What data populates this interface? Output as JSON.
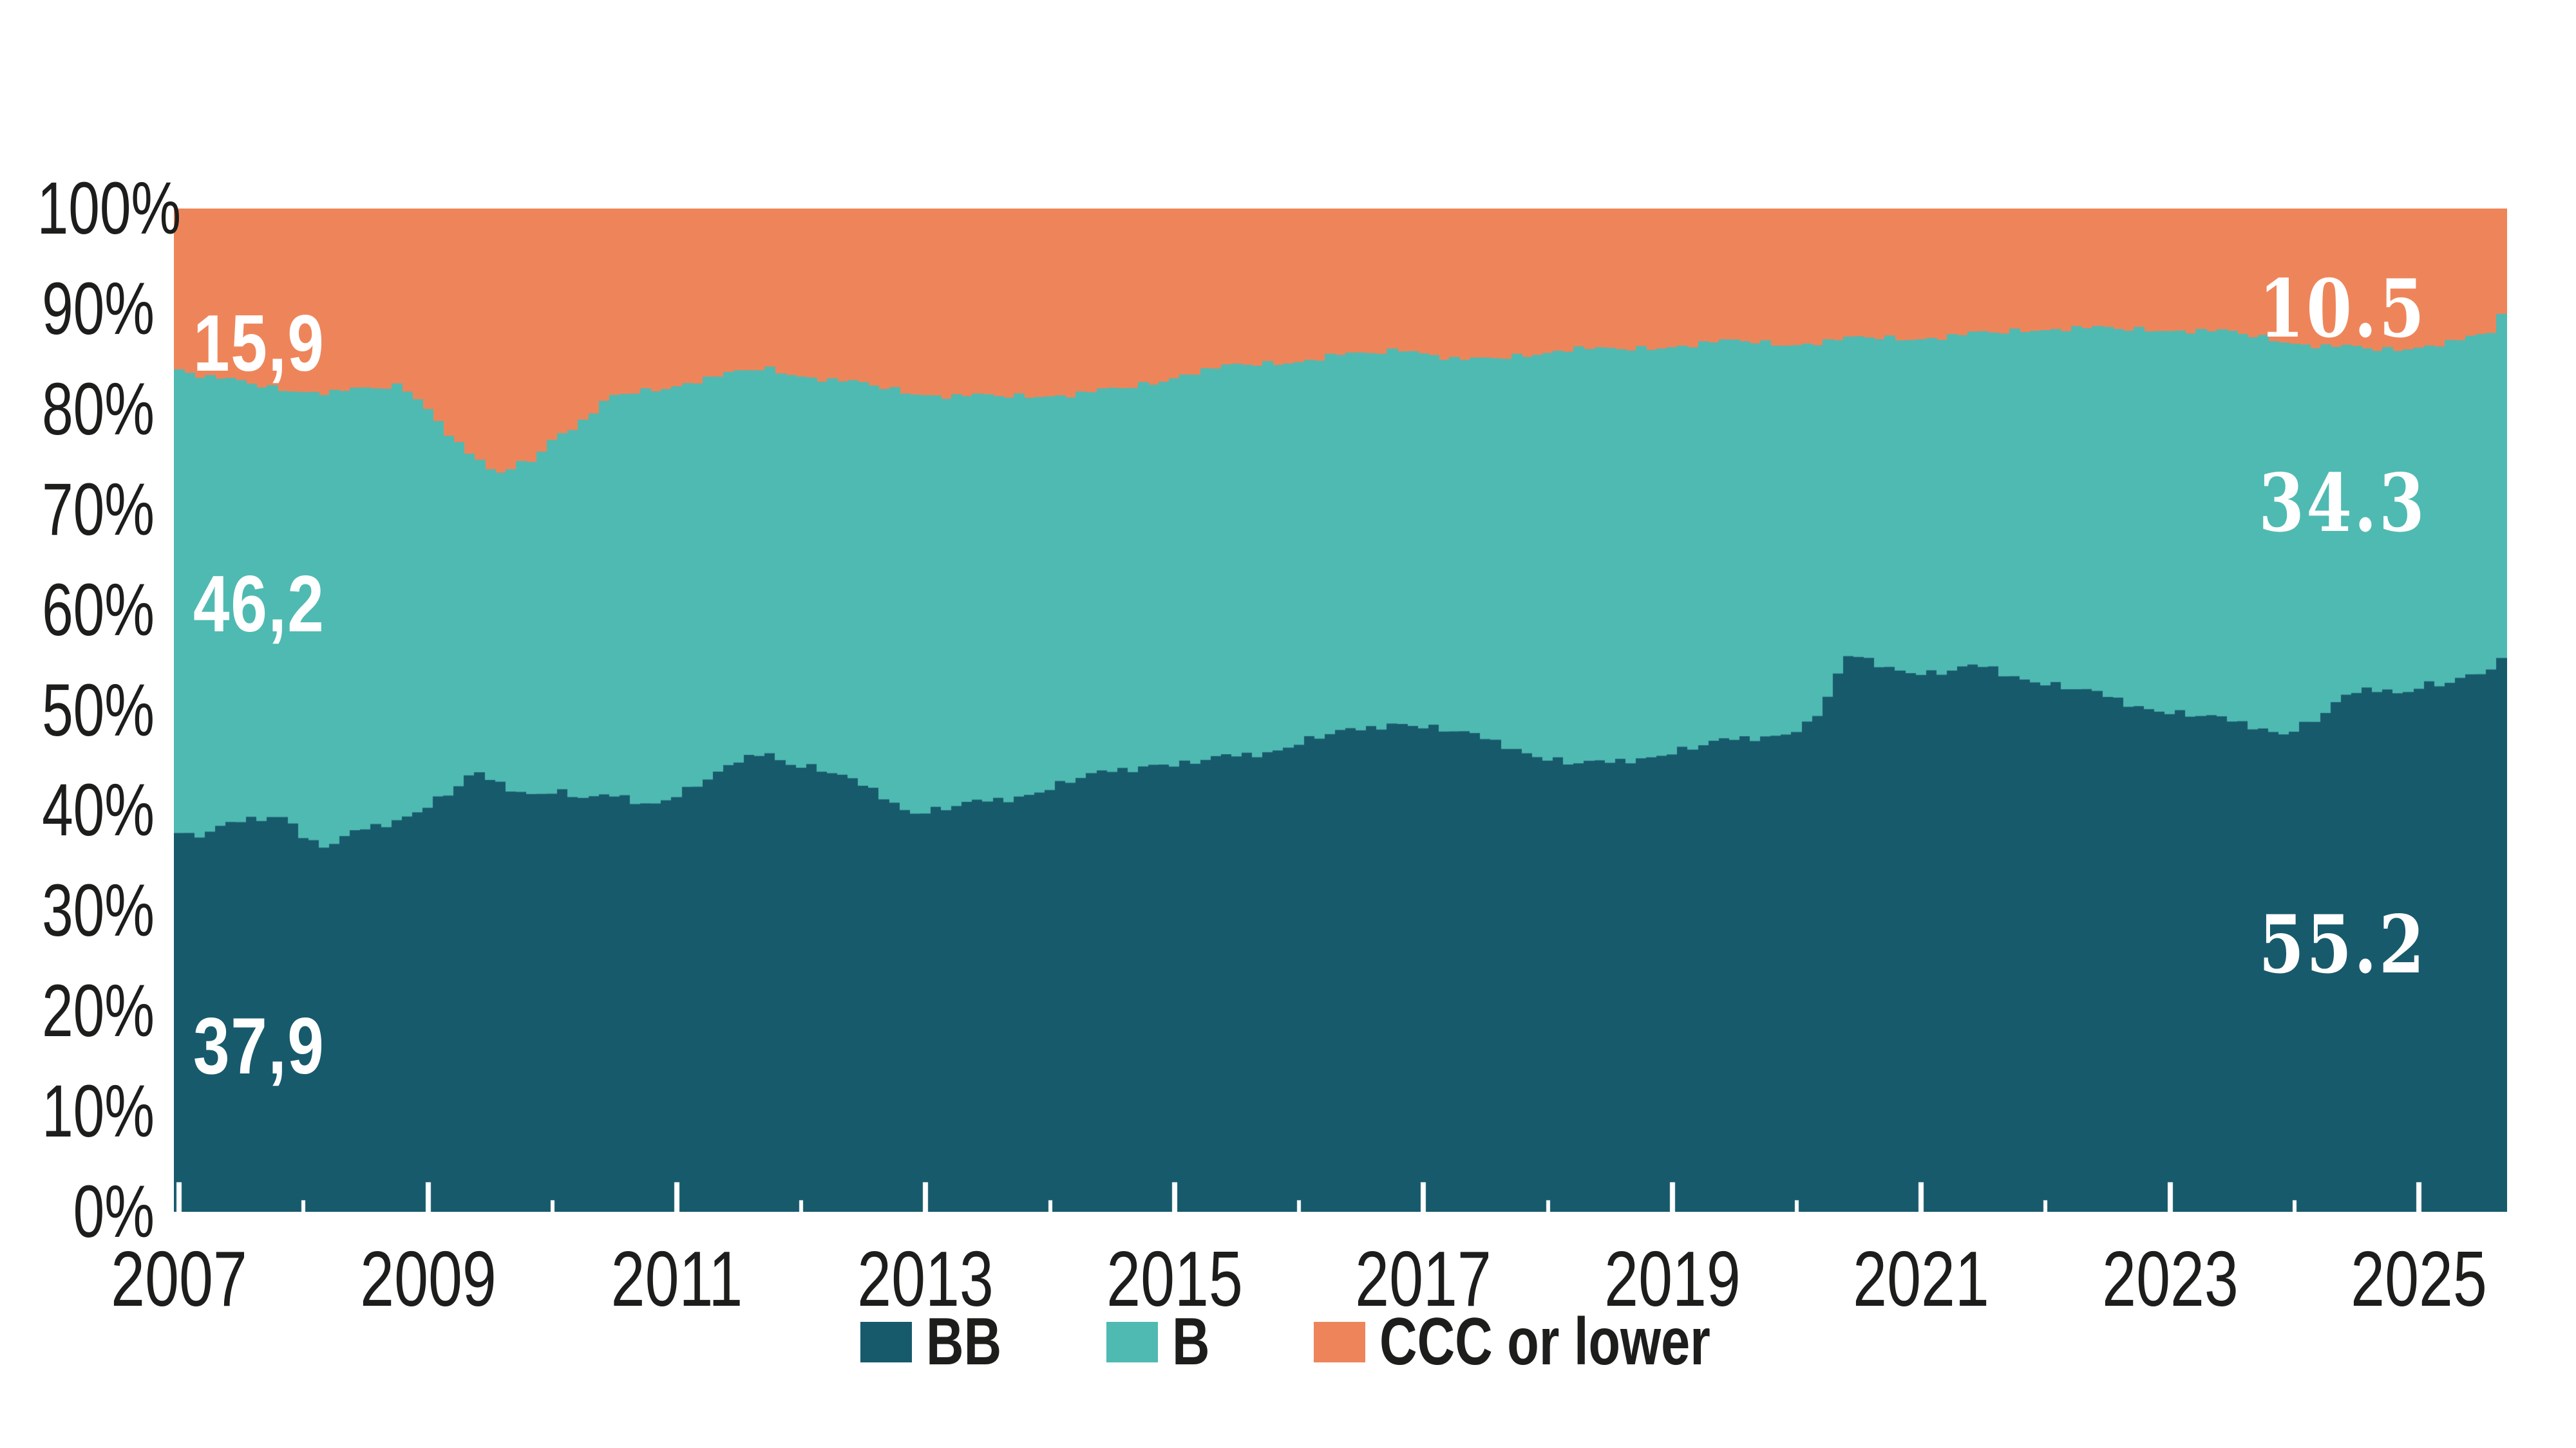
{
  "chart_data": {
    "type": "area",
    "variant": "stacked-100-percent-monthly-steps",
    "title": "",
    "background_color": "#ffffff",
    "text_color": "#1d1d1b",
    "x_axis": {
      "start": 2007.0,
      "end": 2025.75,
      "months": 225,
      "tick_years": [
        2007,
        2008,
        2009,
        2010,
        2011,
        2012,
        2013,
        2014,
        2015,
        2016,
        2017,
        2018,
        2019,
        2020,
        2021,
        2022,
        2023,
        2024,
        2025
      ],
      "labeled_years": [
        2007,
        2009,
        2011,
        2013,
        2015,
        2017,
        2019,
        2021,
        2023,
        2025
      ],
      "labels": [
        "2007",
        "2009",
        "2011",
        "2013",
        "2015",
        "2017",
        "2019",
        "2021",
        "2023",
        "2025"
      ],
      "tick_color": "#ffffff"
    },
    "y_axis": {
      "min": 0,
      "max": 100,
      "tick_step": 10,
      "labels": [
        "0%",
        "10%",
        "20%",
        "30%",
        "40%",
        "50%",
        "60%",
        "70%",
        "80%",
        "90%",
        "100%"
      ],
      "gridlines": false
    },
    "legend": {
      "position": "bottom",
      "items": [
        {
          "label": "BB",
          "color": "#175a6c"
        },
        {
          "label": "B",
          "color": "#4fbab2"
        },
        {
          "label": "CCC or lower",
          "color": "#ee855a"
        }
      ]
    },
    "series": [
      {
        "name": "BB",
        "color": "#175a6c",
        "role": "bottom-band-boundary",
        "anchors": [
          [
            2007.0,
            37.9
          ],
          [
            2007.17,
            37.3
          ],
          [
            2007.42,
            38.3
          ],
          [
            2007.67,
            39.3
          ],
          [
            2007.92,
            39.6
          ],
          [
            2008.08,
            36.9
          ],
          [
            2008.25,
            36.3
          ],
          [
            2008.5,
            37.9
          ],
          [
            2008.75,
            38.9
          ],
          [
            2009.0,
            40.3
          ],
          [
            2009.25,
            41.9
          ],
          [
            2009.42,
            43.6
          ],
          [
            2009.58,
            42.8
          ],
          [
            2009.83,
            41.8
          ],
          [
            2010.08,
            42.0
          ],
          [
            2010.33,
            41.0
          ],
          [
            2010.58,
            41.4
          ],
          [
            2010.83,
            40.7
          ],
          [
            2011.08,
            41.8
          ],
          [
            2011.33,
            43.2
          ],
          [
            2011.58,
            45.0
          ],
          [
            2011.75,
            46.1
          ],
          [
            2011.92,
            44.9
          ],
          [
            2012.17,
            44.2
          ],
          [
            2012.42,
            43.0
          ],
          [
            2012.67,
            41.8
          ],
          [
            2012.92,
            39.9
          ],
          [
            2013.17,
            40.1
          ],
          [
            2013.42,
            40.6
          ],
          [
            2013.67,
            41.1
          ],
          [
            2013.92,
            41.9
          ],
          [
            2014.17,
            42.8
          ],
          [
            2014.42,
            43.5
          ],
          [
            2014.67,
            44.1
          ],
          [
            2014.92,
            44.9
          ],
          [
            2015.08,
            44.6
          ],
          [
            2015.33,
            45.0
          ],
          [
            2015.58,
            45.4
          ],
          [
            2015.83,
            46.0
          ],
          [
            2016.08,
            47.0
          ],
          [
            2016.33,
            47.6
          ],
          [
            2016.58,
            48.0
          ],
          [
            2016.83,
            48.9
          ],
          [
            2017.0,
            48.6
          ],
          [
            2017.25,
            47.9
          ],
          [
            2017.5,
            47.2
          ],
          [
            2017.75,
            46.4
          ],
          [
            2018.0,
            45.4
          ],
          [
            2018.25,
            44.6
          ],
          [
            2018.5,
            44.6
          ],
          [
            2018.75,
            45.2
          ],
          [
            2019.0,
            45.8
          ],
          [
            2019.25,
            46.3
          ],
          [
            2019.5,
            46.9
          ],
          [
            2019.75,
            47.4
          ],
          [
            2020.0,
            47.9
          ],
          [
            2020.17,
            48.8
          ],
          [
            2020.33,
            52.0
          ],
          [
            2020.42,
            54.6
          ],
          [
            2020.5,
            55.4
          ],
          [
            2020.67,
            54.8
          ],
          [
            2020.92,
            54.0
          ],
          [
            2021.17,
            53.6
          ],
          [
            2021.42,
            54.1
          ],
          [
            2021.58,
            54.3
          ],
          [
            2021.75,
            53.6
          ],
          [
            2022.0,
            52.9
          ],
          [
            2022.25,
            52.1
          ],
          [
            2022.5,
            51.4
          ],
          [
            2022.75,
            50.6
          ],
          [
            2023.0,
            50.0
          ],
          [
            2023.25,
            49.4
          ],
          [
            2023.5,
            48.9
          ],
          [
            2023.75,
            48.4
          ],
          [
            2023.95,
            47.8
          ],
          [
            2024.08,
            48.3
          ],
          [
            2024.25,
            49.2
          ],
          [
            2024.42,
            50.9
          ],
          [
            2024.58,
            51.9
          ],
          [
            2024.75,
            52.3
          ],
          [
            2024.9,
            51.8
          ],
          [
            2025.08,
            52.6
          ],
          [
            2025.25,
            52.5
          ],
          [
            2025.42,
            53.0
          ],
          [
            2025.58,
            53.7
          ],
          [
            2025.67,
            54.4
          ],
          [
            2025.75,
            55.2
          ]
        ]
      },
      {
        "name": "B",
        "color": "#4fbab2",
        "role": "middle-band-top-boundary (BB+B cumulative share)",
        "anchors": [
          [
            2007.0,
            84.1
          ],
          [
            2007.25,
            83.3
          ],
          [
            2007.5,
            82.7
          ],
          [
            2007.75,
            82.2
          ],
          [
            2008.0,
            81.9
          ],
          [
            2008.25,
            81.7
          ],
          [
            2008.58,
            81.9
          ],
          [
            2008.83,
            82.4
          ],
          [
            2009.0,
            80.8
          ],
          [
            2009.08,
            79.6
          ],
          [
            2009.17,
            78.2
          ],
          [
            2009.33,
            76.0
          ],
          [
            2009.5,
            74.2
          ],
          [
            2009.58,
            73.3
          ],
          [
            2009.75,
            74.4
          ],
          [
            2009.92,
            75.2
          ],
          [
            2010.0,
            76.8
          ],
          [
            2010.17,
            78.0
          ],
          [
            2010.33,
            79.0
          ],
          [
            2010.5,
            81.0
          ],
          [
            2010.67,
            81.6
          ],
          [
            2010.92,
            82.1
          ],
          [
            2011.17,
            82.8
          ],
          [
            2011.42,
            83.3
          ],
          [
            2011.75,
            84.1
          ],
          [
            2012.0,
            83.5
          ],
          [
            2012.33,
            82.8
          ],
          [
            2012.67,
            82.2
          ],
          [
            2012.92,
            81.7
          ],
          [
            2013.25,
            81.3
          ],
          [
            2013.58,
            81.2
          ],
          [
            2013.92,
            81.4
          ],
          [
            2014.25,
            81.5
          ],
          [
            2014.58,
            81.9
          ],
          [
            2014.92,
            82.8
          ],
          [
            2015.17,
            83.7
          ],
          [
            2015.5,
            84.2
          ],
          [
            2015.83,
            84.6
          ],
          [
            2016.08,
            84.9
          ],
          [
            2016.33,
            85.4
          ],
          [
            2016.5,
            85.3
          ],
          [
            2016.75,
            85.7
          ],
          [
            2016.92,
            86.1
          ],
          [
            2017.08,
            85.6
          ],
          [
            2017.33,
            84.9
          ],
          [
            2017.5,
            84.8
          ],
          [
            2017.75,
            85.2
          ],
          [
            2018.0,
            85.7
          ],
          [
            2018.25,
            86.1
          ],
          [
            2018.5,
            85.8
          ],
          [
            2018.75,
            86.0
          ],
          [
            2019.0,
            86.3
          ],
          [
            2019.33,
            86.6
          ],
          [
            2019.67,
            86.7
          ],
          [
            2020.0,
            86.5
          ],
          [
            2020.33,
            86.8
          ],
          [
            2020.67,
            87.1
          ],
          [
            2021.0,
            87.1
          ],
          [
            2021.33,
            87.3
          ],
          [
            2021.67,
            87.6
          ],
          [
            2021.92,
            88.0
          ],
          [
            2022.25,
            88.1
          ],
          [
            2022.58,
            87.9
          ],
          [
            2022.92,
            88.0
          ],
          [
            2023.17,
            87.9
          ],
          [
            2023.5,
            87.6
          ],
          [
            2023.83,
            87.1
          ],
          [
            2024.08,
            86.6
          ],
          [
            2024.33,
            86.2
          ],
          [
            2024.58,
            86.0
          ],
          [
            2024.75,
            85.9
          ],
          [
            2024.92,
            86.1
          ],
          [
            2025.17,
            86.5
          ],
          [
            2025.42,
            86.9
          ],
          [
            2025.58,
            87.3
          ],
          [
            2025.67,
            87.9
          ],
          [
            2025.75,
            89.5
          ]
        ]
      },
      {
        "name": "CCC or lower",
        "color": "#ee855a",
        "role": "top-band-fills-remainder-to-100"
      }
    ],
    "value_labels": [
      {
        "series": "CCC or lower",
        "position": "start",
        "text": "15,9"
      },
      {
        "series": "B",
        "position": "start",
        "text": "46,2"
      },
      {
        "series": "BB",
        "position": "start",
        "text": "37,9"
      },
      {
        "series": "CCC or lower",
        "position": "end",
        "text": "10.5"
      },
      {
        "series": "B",
        "position": "end",
        "text": "34.3"
      },
      {
        "series": "BB",
        "position": "end",
        "text": "55.2"
      }
    ],
    "start_values": {
      "BB": 37.9,
      "B": 46.2,
      "CCC or lower": 15.9
    },
    "end_values": {
      "BB": 55.2,
      "B": 34.3,
      "CCC or lower": 10.5
    },
    "texture_jitter": [
      0.25,
      -0.3,
      0.4,
      -0.2,
      0.1,
      -0.4,
      0.3,
      0.05,
      -0.25,
      0.35,
      -0.1,
      -0.15
    ]
  }
}
